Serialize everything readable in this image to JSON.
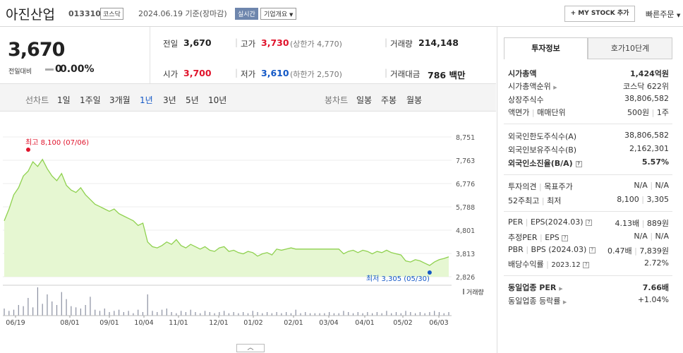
{
  "header": {
    "stock_name": "아진산업",
    "stock_code": "013310",
    "market": "코스닥",
    "as_of": "2024.06.19 기준(장마감)",
    "realtime": "실시간",
    "company_overview": "기업개요",
    "my_stock": "+ MY STOCK 추가",
    "quick_order": "빠른주문"
  },
  "price": {
    "current": "3,670",
    "change_label": "전일대비",
    "change_value": "0",
    "change_rate": "0.00%"
  },
  "quote": {
    "prev_label": "전일",
    "prev": "3,670",
    "high_label": "고가",
    "high": "3,730",
    "upper_limit": "(상한가 4,770)",
    "volume_label": "거래량",
    "volume": "214,148",
    "open_label": "시가",
    "open": "3,700",
    "low_label": "저가",
    "low": "3,610",
    "lower_limit": "(하한가 2,570)",
    "amount_label": "거래대금",
    "amount": "786 백만"
  },
  "chart_tabs": {
    "line_title": "선차트",
    "line": [
      "1일",
      "1주일",
      "3개월",
      "1년",
      "3년",
      "5년",
      "10년"
    ],
    "active": "1년",
    "candle_title": "봉차트",
    "candle": [
      "일봉",
      "주봉",
      "월봉"
    ]
  },
  "right_panel": {
    "tabs": [
      "투자정보",
      "호가10단계"
    ],
    "market_cap_label": "시가총액",
    "market_cap": "1,424억원",
    "cap_rank_label": "시가총액순위",
    "cap_rank": "코스닥 622위",
    "shares_label": "상장주식수",
    "shares": "38,806,582",
    "par_label": "액면가",
    "par_sep": "매매단위",
    "par": "500원",
    "par_unit": "1주",
    "foreign_limit_label": "외국인한도주식수(A)",
    "foreign_limit": "38,806,582",
    "foreign_hold_label": "외국인보유주식수(B)",
    "foreign_hold": "2,162,301",
    "foreign_ratio_label": "외국인소진율(B/A)",
    "foreign_ratio": "5.57%",
    "opinion_label": "투자의견",
    "target_label": "목표주가",
    "opinion": "N/A",
    "target": "N/A",
    "w52_label": "52주최고",
    "w52_low_label": "최저",
    "w52_high": "8,100",
    "w52_low": "3,305",
    "per_label": "PER",
    "eps_label": "EPS(2024.03)",
    "per": "4.13배",
    "eps": "889원",
    "est_per_label": "추정PER",
    "est_eps_label": "EPS",
    "est_per": "N/A",
    "est_eps": "N/A",
    "pbr_label": "PBR",
    "bps_label": "BPS (2024.03)",
    "pbr": "0.47배",
    "bps": "7,839원",
    "div_label": "배당수익률",
    "div_date": "2023.12",
    "div": "2.72%",
    "ind_per_label": "동일업종 PER",
    "ind_per": "7.66배",
    "ind_change_label": "동일업종 등락률",
    "ind_change": "+1.04%"
  },
  "colors": {
    "up": "#e0142c",
    "down": "#1358c6",
    "line": "#8fd14f",
    "fill": "#e6f7d2"
  },
  "chart_data": {
    "type": "area",
    "y_ticks": [
      "8,751",
      "7,763",
      "6,776",
      "5,788",
      "4,801",
      "3,813",
      "2,826"
    ],
    "ylim": [
      2826,
      8751
    ],
    "x_ticks": [
      "06/19",
      "08/01",
      "09/01",
      "10/04",
      "11/01",
      "12/01",
      "01/02",
      "02/01",
      "03/04",
      "04/01",
      "05/02",
      "06/03"
    ],
    "high_label": "최고 8,100 (07/06)",
    "low_label": "최저 3,305 (05/30)",
    "volume_label": "거래량",
    "series": [
      {
        "values": [
          5200,
          5700,
          6300,
          6600,
          7100,
          7300,
          7700,
          7500,
          7800,
          7400,
          7100,
          6900,
          7200,
          6700,
          6500,
          6400,
          6600,
          6300,
          6100,
          5900,
          5800,
          5700,
          5600,
          5700,
          5500,
          5400,
          5300,
          5200,
          5000,
          5100,
          4300,
          4100,
          4050,
          4150,
          4300,
          4200,
          4400,
          4150,
          4050,
          4200,
          4100,
          4000,
          4100,
          3950,
          3900,
          4050,
          4100,
          3900,
          3950,
          3850,
          3800,
          3900,
          3850,
          3700,
          3800,
          3850,
          3750,
          4000,
          3950,
          4000,
          4050,
          4000,
          4000,
          4000,
          4000,
          4000,
          4000,
          4000,
          4000,
          4000,
          4000,
          3800,
          3900,
          3950,
          3850,
          3950,
          3900,
          3800,
          3900,
          3850,
          3950,
          3850,
          3800,
          3750,
          3500,
          3450,
          3550,
          3500,
          3400,
          3305,
          3450,
          3550,
          3600,
          3670
        ]
      }
    ],
    "volume": [
      6,
      4,
      5,
      9,
      8,
      15,
      7,
      24,
      10,
      18,
      12,
      9,
      20,
      14,
      8,
      7,
      6,
      9,
      16,
      5,
      4,
      6,
      3,
      4,
      5,
      3,
      4,
      2,
      5,
      3,
      18,
      4,
      3,
      5,
      6,
      3,
      2,
      4,
      3,
      5,
      3,
      2,
      4,
      3,
      2,
      3,
      4,
      2,
      3,
      2,
      3,
      2,
      4,
      3,
      2,
      3,
      2,
      3,
      2,
      3,
      2,
      5,
      2,
      3,
      2,
      2,
      2,
      2,
      3,
      2,
      2,
      4,
      3,
      2,
      3,
      2,
      3,
      2,
      3,
      2,
      4,
      2,
      3,
      2,
      4,
      3,
      2,
      3,
      2,
      3,
      4,
      3,
      2,
      3
    ]
  }
}
